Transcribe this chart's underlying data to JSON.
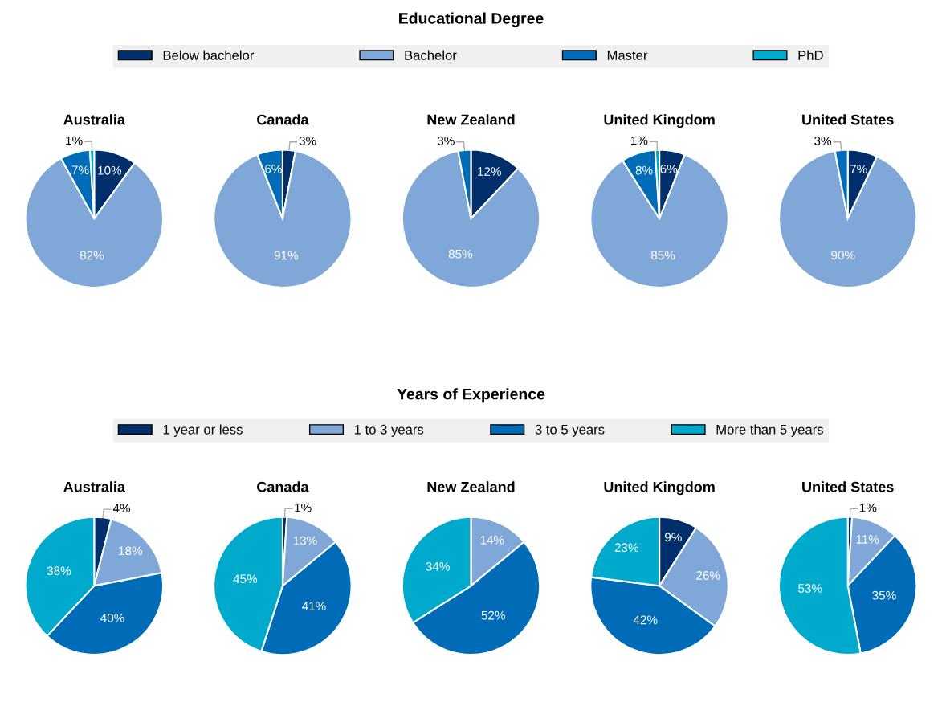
{
  "chart_data": [
    {
      "type": "pie",
      "title": "Australia",
      "legend_title": "Educational Degree",
      "legend": "top",
      "categories": [
        "Below bachelor",
        "Bachelor",
        "Master",
        "PhD"
      ],
      "values": [
        10,
        82,
        7,
        1
      ],
      "value_labels": [
        "10%",
        "82%",
        "7%",
        "1%"
      ],
      "colors": [
        "#002f6c",
        "#7fa8d8",
        "#006bb6",
        "#00aacc"
      ]
    },
    {
      "type": "pie",
      "title": "Canada",
      "categories": [
        null,
        null,
        null,
        null
      ],
      "values": [
        3,
        91,
        6,
        0
      ],
      "value_labels": [
        "3%",
        "91%",
        "6%",
        null
      ],
      "colors": [
        "#002f6c",
        "#7fa8d8",
        "#006bb6",
        "#00aacc"
      ]
    },
    {
      "type": "pie",
      "title": "New Zealand",
      "categories": [
        null,
        null,
        null,
        null
      ],
      "values": [
        12,
        85,
        3,
        0
      ],
      "value_labels": [
        "12%",
        "85%",
        "3%",
        null
      ],
      "colors": [
        "#002f6c",
        "#7fa8d8",
        "#006bb6",
        "#00aacc"
      ]
    },
    {
      "type": "pie",
      "title": "United Kingdom",
      "categories": [
        null,
        null,
        null,
        null
      ],
      "values": [
        6,
        85,
        8,
        1
      ],
      "value_labels": [
        "6%",
        "85%",
        "8%",
        "1%"
      ],
      "colors": [
        "#002f6c",
        "#7fa8d8",
        "#006bb6",
        "#00aacc"
      ]
    },
    {
      "type": "pie",
      "title": "United States",
      "categories": [
        null,
        null,
        null,
        null
      ],
      "values": [
        7,
        90,
        3,
        0
      ],
      "value_labels": [
        "7%",
        "90%",
        "3%",
        null
      ],
      "colors": [
        "#002f6c",
        "#7fa8d8",
        "#006bb6",
        "#00aacc"
      ]
    },
    {
      "type": "pie",
      "title": "Australia",
      "legend_title": "Years of Experience",
      "legend": "top",
      "categories": [
        "1 year or less",
        "1 to 3 years",
        "3 to 5 years",
        "More than 5 years"
      ],
      "values": [
        4,
        18,
        40,
        38
      ],
      "value_labels": [
        "4%",
        "18%",
        "40%",
        "38%"
      ],
      "colors": [
        "#002f6c",
        "#7fa8d8",
        "#006bb6",
        "#00aacc"
      ]
    },
    {
      "type": "pie",
      "title": "Canada",
      "categories": [
        null,
        null,
        null,
        null
      ],
      "values": [
        1,
        13,
        41,
        45
      ],
      "value_labels": [
        "1%",
        "13%",
        "41%",
        "45%"
      ],
      "colors": [
        "#002f6c",
        "#7fa8d8",
        "#006bb6",
        "#00aacc"
      ]
    },
    {
      "type": "pie",
      "title": "New Zealand",
      "categories": [
        null,
        null,
        null,
        null
      ],
      "values": [
        0,
        14,
        52,
        34
      ],
      "value_labels": [
        null,
        "14%",
        "52%",
        "34%"
      ],
      "colors": [
        "#002f6c",
        "#7fa8d8",
        "#006bb6",
        "#00aacc"
      ]
    },
    {
      "type": "pie",
      "title": "United Kingdom",
      "categories": [
        null,
        null,
        null,
        null
      ],
      "values": [
        9,
        26,
        42,
        23
      ],
      "value_labels": [
        "9%",
        "26%",
        "42%",
        "23%"
      ],
      "colors": [
        "#002f6c",
        "#7fa8d8",
        "#006bb6",
        "#00aacc"
      ]
    },
    {
      "type": "pie",
      "title": "United States",
      "categories": [
        null,
        null,
        null,
        null
      ],
      "values": [
        1,
        11,
        35,
        53
      ],
      "value_labels": [
        "1%",
        "11%",
        "35%",
        "53%"
      ],
      "colors": [
        "#002f6c",
        "#7fa8d8",
        "#006bb6",
        "#00aacc"
      ]
    }
  ]
}
